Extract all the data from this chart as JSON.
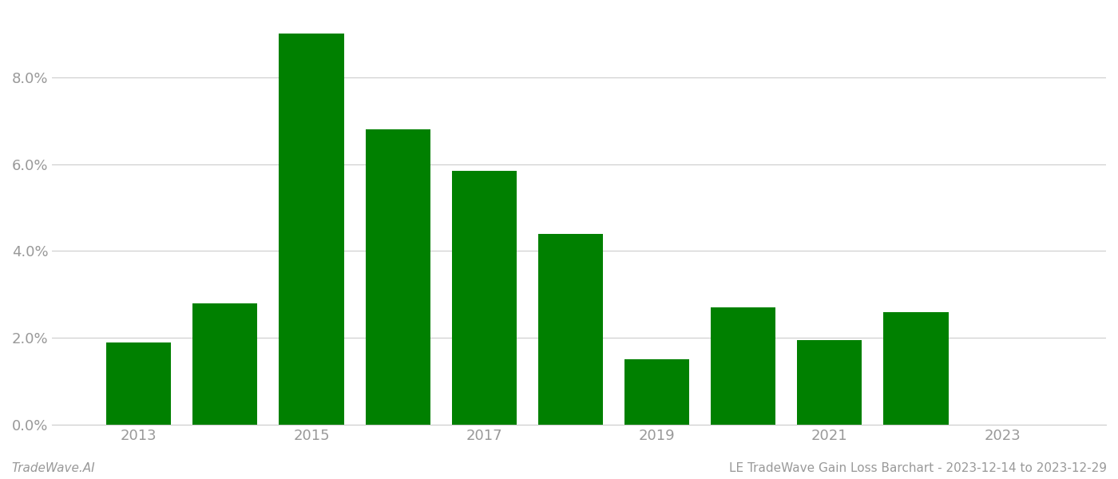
{
  "years": [
    2013,
    2014,
    2015,
    2016,
    2017,
    2018,
    2019,
    2020,
    2021,
    2022
  ],
  "values": [
    0.019,
    0.028,
    0.09,
    0.068,
    0.0585,
    0.044,
    0.015,
    0.027,
    0.0195,
    0.026
  ],
  "bar_color": "#008000",
  "background_color": "#ffffff",
  "ylim": [
    0,
    0.095
  ],
  "yticks": [
    0.0,
    0.02,
    0.04,
    0.06,
    0.08
  ],
  "ytick_labels": [
    "0.0%",
    "2.0%",
    "4.0%",
    "6.0%",
    "8.0%"
  ],
  "xticks": [
    2013,
    2015,
    2017,
    2019,
    2021,
    2023
  ],
  "xlim": [
    2012.0,
    2024.2
  ],
  "footer_left": "TradeWave.AI",
  "footer_right": "LE TradeWave Gain Loss Barchart - 2023-12-14 to 2023-12-29",
  "grid_color": "#cccccc",
  "tick_label_color": "#999999",
  "footer_color": "#999999",
  "bar_width": 0.75,
  "tick_label_fontsize": 13,
  "footer_fontsize": 11
}
